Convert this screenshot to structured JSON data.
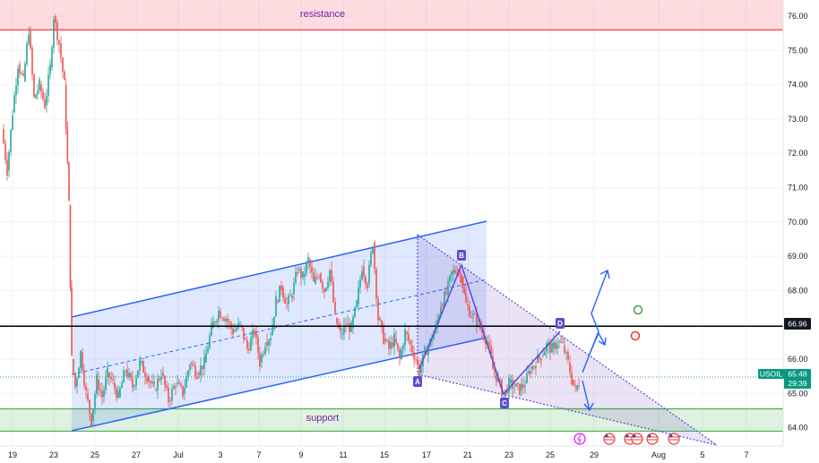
{
  "chart_data": {
    "type": "candlestick",
    "symbol": "USOIL",
    "current_price": "65.48",
    "countdown": "29:39",
    "level_price": "66.96",
    "y_ticks": [
      "76.00",
      "75.00",
      "74.00",
      "73.00",
      "72.00",
      "71.00",
      "70.00",
      "69.00",
      "68.00",
      "67.00",
      "66.00",
      "65.00",
      "64.00"
    ],
    "x_ticks": [
      "19",
      "23",
      "25",
      "27",
      "Jul",
      "3",
      "7",
      "9",
      "11",
      "15",
      "17",
      "21",
      "23",
      "25",
      "29",
      "Aug",
      "5",
      "7"
    ],
    "zones": [
      {
        "label": "resistance",
        "from": 75.6,
        "to": 76.6
      },
      {
        "label": "support",
        "from": 63.9,
        "to": 64.55
      }
    ],
    "pattern_points": [
      {
        "label": "A"
      },
      {
        "label": "B"
      },
      {
        "label": "C"
      },
      {
        "label": "D"
      }
    ],
    "colors": {
      "up": "#26a69a",
      "down": "#ef5350",
      "channel": "#2962ff",
      "pattern": "#5b4bd6",
      "level": "#000000",
      "resistance": "#f7525f",
      "support": "#4caf50",
      "price": "#089981"
    }
  }
}
